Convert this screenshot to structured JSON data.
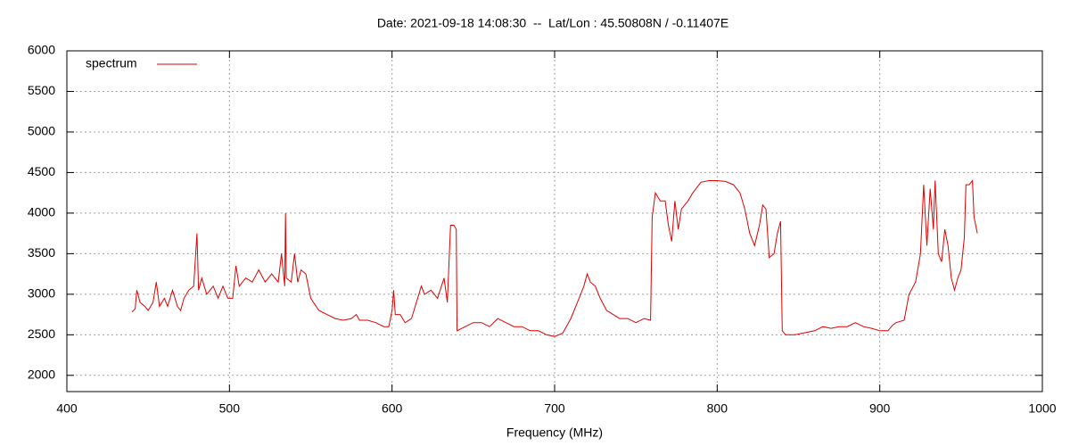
{
  "chart_data": {
    "type": "line",
    "title": "Date: 2021-09-18 14:08:30  --  Lat/Lon : 45.50808N / -0.11407E",
    "x_label": "Frequency (MHz)",
    "xlim": [
      400,
      1000
    ],
    "xticks": [
      400,
      500,
      600,
      700,
      800,
      900,
      1000
    ],
    "ylim": [
      1800,
      6000
    ],
    "yticks": [
      2000,
      2500,
      3000,
      3500,
      4000,
      4500,
      5000,
      5500,
      6000
    ],
    "grid": true,
    "legend": "top-left",
    "x": [
      440,
      442,
      443,
      445,
      448,
      450,
      453,
      455,
      457,
      460,
      462,
      465,
      468,
      470,
      472,
      475,
      478,
      480,
      481,
      483,
      486,
      490,
      493,
      496,
      499,
      502,
      504,
      506,
      510,
      514,
      518,
      522,
      526,
      530,
      532,
      534,
      534.5,
      535,
      538,
      540,
      542,
      544,
      547,
      550,
      555,
      560,
      565,
      570,
      575,
      578,
      580,
      585,
      590,
      595,
      598,
      600,
      601,
      602,
      605,
      608,
      612,
      615,
      618,
      620,
      624,
      628,
      632,
      634,
      636,
      638,
      639.5,
      640,
      645,
      650,
      655,
      660,
      665,
      670,
      675,
      680,
      685,
      690,
      695,
      700,
      705,
      710,
      715,
      718,
      720,
      722,
      725,
      728,
      732,
      736,
      740,
      745,
      750,
      755,
      759,
      760,
      762,
      765,
      768,
      770,
      772,
      774,
      776,
      778,
      782,
      785,
      790,
      795,
      800,
      805,
      810,
      814,
      817,
      820,
      823,
      826,
      828,
      830,
      832,
      835,
      837,
      839,
      840,
      842,
      848,
      855,
      860,
      865,
      870,
      875,
      880,
      885,
      890,
      895,
      900,
      905,
      908,
      910,
      915,
      918,
      922,
      925,
      927,
      929,
      931,
      933,
      934,
      936,
      938,
      940,
      942,
      944,
      946,
      948,
      950,
      952,
      953,
      955,
      957,
      958,
      960
    ],
    "series": [
      {
        "name": "spectrum",
        "color": "#e00000",
        "values": [
          2780,
          2820,
          3050,
          2900,
          2850,
          2800,
          2900,
          3150,
          2850,
          2950,
          2850,
          3050,
          2850,
          2800,
          2950,
          3050,
          3100,
          3750,
          3050,
          3200,
          3000,
          3100,
          2950,
          3100,
          2950,
          2950,
          3350,
          3100,
          3200,
          3150,
          3300,
          3150,
          3250,
          3150,
          3500,
          3100,
          4000,
          3200,
          3150,
          3500,
          3150,
          3300,
          3250,
          2950,
          2800,
          2750,
          2700,
          2680,
          2700,
          2750,
          2680,
          2680,
          2650,
          2600,
          2600,
          2800,
          3050,
          2750,
          2750,
          2650,
          2700,
          2900,
          3100,
          3000,
          3050,
          2950,
          3200,
          2900,
          3850,
          3850,
          3800,
          2550,
          2600,
          2650,
          2650,
          2600,
          2700,
          2650,
          2600,
          2600,
          2550,
          2550,
          2500,
          2480,
          2520,
          2700,
          2950,
          3100,
          3250,
          3150,
          3100,
          2950,
          2800,
          2750,
          2700,
          2700,
          2650,
          2700,
          2680,
          3950,
          4250,
          4150,
          4150,
          3850,
          3650,
          4150,
          3800,
          4050,
          4150,
          4250,
          4380,
          4400,
          4400,
          4390,
          4350,
          4250,
          4050,
          3750,
          3600,
          3850,
          4100,
          4050,
          3450,
          3500,
          3750,
          3900,
          2550,
          2500,
          2500,
          2530,
          2550,
          2600,
          2580,
          2600,
          2600,
          2650,
          2600,
          2580,
          2550,
          2550,
          2620,
          2650,
          2680,
          3000,
          3150,
          3500,
          4350,
          3600,
          4300,
          3800,
          4400,
          3500,
          3400,
          3800,
          3600,
          3200,
          3050,
          3200,
          3300,
          3700,
          4350,
          4350,
          4400,
          3950,
          3750
        ]
      }
    ]
  }
}
